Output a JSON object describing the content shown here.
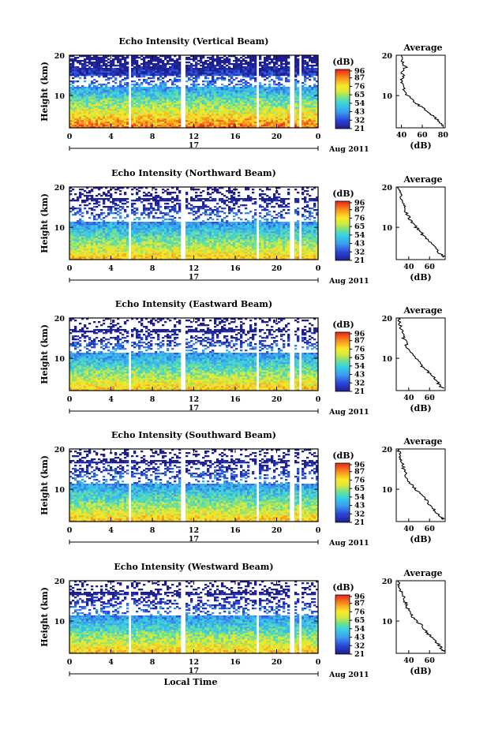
{
  "chart_data": [
    {
      "type": "heatmap",
      "title": "Echo Intensity (Vertical Beam)",
      "ylabel": "Height (km)",
      "yticks": [
        "20",
        "10"
      ],
      "ylim": [
        2,
        20
      ],
      "xticks": [
        "0",
        "4",
        "8",
        "12",
        "16",
        "20",
        "0"
      ],
      "xlim": [
        0,
        24
      ],
      "date_day": "17",
      "date_label": "Aug 2011",
      "gaps_hours": [
        [
          5.7,
          6.0
        ],
        [
          10.8,
          11.2
        ],
        [
          18.0,
          18.4
        ],
        [
          21.3,
          21.6
        ],
        [
          22.2,
          22.4
        ]
      ],
      "colorbar": {
        "label": "(dB)",
        "ticks": [
          "96",
          "87",
          "76",
          "65",
          "54",
          "43",
          "32",
          "21"
        ],
        "range": [
          21,
          98
        ]
      },
      "average": {
        "title": "Average",
        "xlabel": "(dB)",
        "xticks": [
          "40",
          "60",
          "80"
        ],
        "xlim": [
          35,
          82
        ],
        "ylim": [
          2,
          20
        ],
        "yticks": [
          "20",
          "10"
        ],
        "profile": [
          [
            2.5,
            80
          ],
          [
            3,
            78
          ],
          [
            4,
            75
          ],
          [
            5,
            70
          ],
          [
            6,
            65
          ],
          [
            7,
            60
          ],
          [
            8,
            55
          ],
          [
            9,
            50
          ],
          [
            10,
            46
          ],
          [
            11,
            43
          ],
          [
            12,
            42
          ],
          [
            13,
            41
          ],
          [
            14,
            40
          ],
          [
            15,
            42
          ],
          [
            16,
            40
          ],
          [
            17,
            44
          ],
          [
            18,
            41
          ],
          [
            19,
            40
          ],
          [
            20,
            40
          ]
        ]
      },
      "echo_fields": [
        {
          "top": 7.5,
          "strong": 1.0,
          "mid": 0.15
        },
        {
          "top": 10.5,
          "strong": 0.85
        },
        {
          "top": 13.5,
          "strong": 0.55
        },
        {
          "top": 17.0,
          "strong": 0.35
        },
        {
          "top": 19.6,
          "strong": 0.25
        }
      ]
    },
    {
      "type": "heatmap",
      "title": "Echo Intensity (Northward Beam)",
      "ylabel": "Height (km)",
      "yticks": [
        "20",
        "10"
      ],
      "ylim": [
        2,
        20
      ],
      "xticks": [
        "0",
        "4",
        "8",
        "12",
        "16",
        "20",
        "0"
      ],
      "xlim": [
        0,
        24
      ],
      "date_day": "17",
      "date_label": "Aug 2011",
      "gaps_hours": [
        [
          5.7,
          6.0
        ],
        [
          10.8,
          11.2
        ],
        [
          18.0,
          18.4
        ],
        [
          21.3,
          21.6
        ],
        [
          22.2,
          22.4
        ]
      ],
      "colorbar": {
        "label": "(dB)",
        "ticks": [
          "96",
          "87",
          "76",
          "65",
          "54",
          "43",
          "32",
          "21"
        ],
        "range": [
          21,
          98
        ]
      },
      "average": {
        "title": "Average",
        "xlabel": "(dB)",
        "xticks": [
          "40",
          "60"
        ],
        "xlim": [
          28,
          75
        ],
        "ylim": [
          2,
          20
        ],
        "yticks": [
          "20",
          "10"
        ],
        "profile": [
          [
            2.5,
            74
          ],
          [
            3,
            72
          ],
          [
            4,
            68
          ],
          [
            5,
            66
          ],
          [
            6,
            62
          ],
          [
            7,
            58
          ],
          [
            8,
            54
          ],
          [
            9,
            51
          ],
          [
            10,
            47
          ],
          [
            11,
            44
          ],
          [
            12,
            41
          ],
          [
            13,
            39
          ],
          [
            14,
            37
          ],
          [
            15,
            36
          ],
          [
            16,
            35
          ],
          [
            17,
            33
          ],
          [
            18,
            33
          ],
          [
            19,
            31
          ],
          [
            20,
            30
          ]
        ]
      }
    },
    {
      "type": "heatmap",
      "title": "Echo Intensity (Eastward Beam)",
      "ylabel": "Height (km)",
      "yticks": [
        "20",
        "10"
      ],
      "ylim": [
        2,
        20
      ],
      "xticks": [
        "0",
        "4",
        "8",
        "12",
        "16",
        "20",
        "0"
      ],
      "xlim": [
        0,
        24
      ],
      "date_day": "17",
      "date_label": "Aug 2011",
      "gaps_hours": [
        [
          5.7,
          6.0
        ],
        [
          10.8,
          11.2
        ],
        [
          18.0,
          18.4
        ],
        [
          21.3,
          21.6
        ],
        [
          22.2,
          22.4
        ]
      ],
      "colorbar": {
        "label": "(dB)",
        "ticks": [
          "96",
          "87",
          "76",
          "65",
          "54",
          "43",
          "32",
          "21"
        ],
        "range": [
          21,
          98
        ]
      },
      "average": {
        "title": "Average",
        "xlabel": "(dB)",
        "xticks": [
          "40",
          "60"
        ],
        "xlim": [
          28,
          75
        ],
        "ylim": [
          2,
          20
        ],
        "yticks": [
          "20",
          "10"
        ],
        "profile": [
          [
            2.5,
            74
          ],
          [
            3,
            71
          ],
          [
            4,
            68
          ],
          [
            5,
            65
          ],
          [
            6,
            61
          ],
          [
            7,
            57
          ],
          [
            8,
            53
          ],
          [
            9,
            50
          ],
          [
            10,
            46
          ],
          [
            11,
            43
          ],
          [
            12,
            40
          ],
          [
            13,
            38
          ],
          [
            14,
            37
          ],
          [
            15,
            35
          ],
          [
            16,
            34
          ],
          [
            17,
            33
          ],
          [
            18,
            32
          ],
          [
            19,
            31
          ],
          [
            20,
            30
          ]
        ]
      }
    },
    {
      "type": "heatmap",
      "title": "Echo Intensity (Southward Beam)",
      "ylabel": "Height (km)",
      "yticks": [
        "20",
        "10"
      ],
      "ylim": [
        2,
        20
      ],
      "xticks": [
        "0",
        "4",
        "8",
        "12",
        "16",
        "20",
        "0"
      ],
      "xlim": [
        0,
        24
      ],
      "date_day": "17",
      "date_label": "Aug 2011",
      "gaps_hours": [
        [
          5.7,
          6.0
        ],
        [
          10.8,
          11.2
        ],
        [
          18.0,
          18.4
        ],
        [
          21.3,
          21.6
        ],
        [
          22.2,
          22.4
        ]
      ],
      "colorbar": {
        "label": "(dB)",
        "ticks": [
          "96",
          "87",
          "76",
          "65",
          "54",
          "43",
          "32",
          "21"
        ],
        "range": [
          21,
          98
        ]
      },
      "average": {
        "title": "Average",
        "xlabel": "(dB)",
        "xticks": [
          "40",
          "60"
        ],
        "xlim": [
          28,
          75
        ],
        "ylim": [
          2,
          20
        ],
        "yticks": [
          "20",
          "10"
        ],
        "profile": [
          [
            2.5,
            73
          ],
          [
            3,
            71
          ],
          [
            4,
            67
          ],
          [
            5,
            64
          ],
          [
            6,
            61
          ],
          [
            7,
            58
          ],
          [
            8,
            55
          ],
          [
            9,
            51
          ],
          [
            10,
            47
          ],
          [
            11,
            43
          ],
          [
            12,
            40
          ],
          [
            13,
            38
          ],
          [
            14,
            37
          ],
          [
            15,
            35
          ],
          [
            16,
            34
          ],
          [
            17,
            33
          ],
          [
            18,
            32
          ],
          [
            19,
            31
          ],
          [
            20,
            30
          ]
        ]
      }
    },
    {
      "type": "heatmap",
      "title": "Echo Intensity (Westward Beam)",
      "ylabel": "Height (km)",
      "yticks": [
        "20",
        "10"
      ],
      "ylim": [
        2,
        20
      ],
      "xticks": [
        "0",
        "4",
        "8",
        "12",
        "16",
        "20",
        "0"
      ],
      "xlim": [
        0,
        24
      ],
      "xlabel": "Local Time",
      "date_day": "17",
      "date_label": "Aug 2011",
      "gaps_hours": [
        [
          5.7,
          6.0
        ],
        [
          10.8,
          11.2
        ],
        [
          18.0,
          18.4
        ],
        [
          21.3,
          21.6
        ],
        [
          22.2,
          22.4
        ]
      ],
      "colorbar": {
        "label": "(dB)",
        "ticks": [
          "96",
          "87",
          "76",
          "65",
          "54",
          "43",
          "32",
          "21"
        ],
        "range": [
          21,
          98
        ]
      },
      "average": {
        "title": "Average",
        "xlabel": "(dB)",
        "xticks": [
          "40",
          "60"
        ],
        "xlim": [
          28,
          75
        ],
        "ylim": [
          2,
          20
        ],
        "yticks": [
          "20",
          "10"
        ],
        "profile": [
          [
            2.5,
            74
          ],
          [
            3,
            72
          ],
          [
            4,
            69
          ],
          [
            5,
            66
          ],
          [
            6,
            62
          ],
          [
            7,
            58
          ],
          [
            8,
            55
          ],
          [
            9,
            52
          ],
          [
            10,
            48
          ],
          [
            11,
            44
          ],
          [
            12,
            41
          ],
          [
            13,
            39
          ],
          [
            14,
            38
          ],
          [
            15,
            36
          ],
          [
            16,
            35
          ],
          [
            17,
            33
          ],
          [
            18,
            32
          ],
          [
            19,
            31
          ],
          [
            20,
            30
          ]
        ]
      }
    }
  ]
}
